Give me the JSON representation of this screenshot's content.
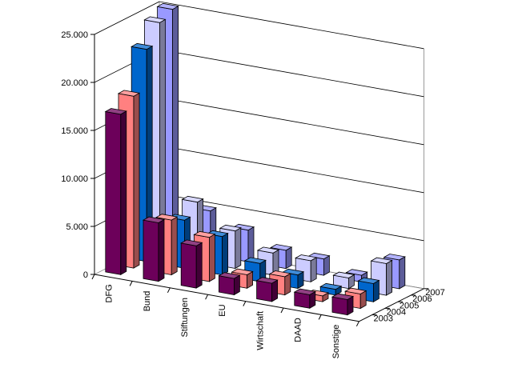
{
  "chart_data": {
    "type": "bar",
    "title": "",
    "xlabel": "",
    "ylabel": "",
    "categories": [
      "DFG",
      "Bund",
      "Stiftungen",
      "EU",
      "Wirtschaft",
      "DAAD",
      "Sonstige"
    ],
    "series": [
      {
        "name": "2003",
        "values": [
          16700,
          6100,
          4400,
          1700,
          1900,
          1400,
          1600
        ]
      },
      {
        "name": "2004",
        "values": [
          17900,
          5700,
          4600,
          1400,
          1900,
          600,
          1500
        ]
      },
      {
        "name": "2005",
        "values": [
          22100,
          5000,
          4000,
          1900,
          1400,
          600,
          1900
        ]
      },
      {
        "name": "2006",
        "values": [
          24200,
          6200,
          3900,
          2300,
          2200,
          1100,
          3300
        ]
      },
      {
        "name": "2007",
        "values": [
          24900,
          4600,
          3300,
          1900,
          1700,
          700,
          3000
        ]
      }
    ],
    "ylim": [
      0,
      25000
    ],
    "yticks": [
      "0",
      "5.000",
      "10.000",
      "15.000",
      "20.000",
      "25.000"
    ],
    "grid": true,
    "legend": "depth-axis",
    "colors": {
      "2003": "#6c005a",
      "2004": "#ff8080",
      "2005": "#0066cc",
      "2006": "#ccccff",
      "2007": "#9999ff"
    }
  }
}
